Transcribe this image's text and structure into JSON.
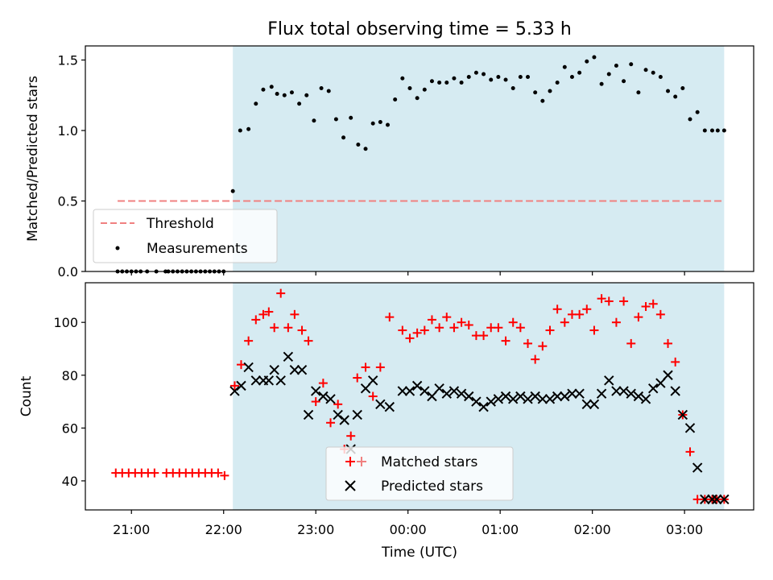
{
  "figure": {
    "title": "Flux total observing time = 5.33 h",
    "xlabel": "Time (UTC)",
    "xtick_labels": [
      "21:00",
      "22:00",
      "23:00",
      "00:00",
      "01:00",
      "02:00",
      "03:00"
    ],
    "colors": {
      "shade": "#add8e6",
      "threshold": "#f08080",
      "measurement": "#000000",
      "matched": "#ff0000",
      "predicted": "#000000"
    }
  },
  "chart_data": [
    {
      "type": "scatter",
      "ylabel": "Matched/Predicted stars",
      "x_unit": "hours after 21:00 UTC",
      "xlim": [
        -0.5,
        6.75
      ],
      "ylim": [
        0,
        1.6
      ],
      "yticks": [
        0.0,
        0.5,
        1.0,
        1.5
      ],
      "ytick_labels": [
        "0.0",
        "0.5",
        "1.0",
        "1.5"
      ],
      "shaded_span": [
        1.1,
        6.43
      ],
      "threshold": {
        "name": "Threshold",
        "y": 0.5,
        "x_range": [
          -0.15,
          6.43
        ]
      },
      "legend": {
        "location": "lower left",
        "entries": [
          "Threshold",
          "Measurements"
        ]
      },
      "series": [
        {
          "name": "Measurements",
          "x": [
            -0.15,
            -0.1,
            -0.05,
            0.0,
            0.05,
            0.1,
            0.17,
            0.27,
            0.37,
            0.4,
            0.45,
            0.5,
            0.55,
            0.6,
            0.65,
            0.7,
            0.75,
            0.8,
            0.85,
            0.9,
            0.95,
            1.0,
            1.1,
            1.18,
            1.27,
            1.35,
            1.43,
            1.52,
            1.58,
            1.66,
            1.74,
            1.82,
            1.9,
            1.98,
            2.06,
            2.14,
            2.22,
            2.3,
            2.38,
            2.46,
            2.54,
            2.62,
            2.7,
            2.78,
            2.86,
            2.94,
            3.02,
            3.1,
            3.18,
            3.26,
            3.34,
            3.42,
            3.5,
            3.58,
            3.66,
            3.74,
            3.82,
            3.9,
            3.98,
            4.06,
            4.14,
            4.22,
            4.3,
            4.38,
            4.46,
            4.54,
            4.62,
            4.7,
            4.78,
            4.86,
            4.94,
            5.02,
            5.1,
            5.18,
            5.26,
            5.34,
            5.42,
            5.5,
            5.58,
            5.66,
            5.74,
            5.82,
            5.9,
            5.98,
            6.06,
            6.14,
            6.22,
            6.3,
            6.36,
            6.43
          ],
          "y": [
            0,
            0,
            0,
            0,
            0,
            0,
            0,
            0,
            0,
            0,
            0,
            0,
            0,
            0,
            0,
            0,
            0,
            0,
            0,
            0,
            0,
            0,
            0.57,
            1.0,
            1.01,
            1.19,
            1.29,
            1.31,
            1.26,
            1.25,
            1.27,
            1.19,
            1.25,
            1.07,
            1.3,
            1.28,
            1.08,
            0.95,
            1.09,
            0.9,
            0.87,
            1.05,
            1.06,
            1.04,
            1.22,
            1.37,
            1.3,
            1.23,
            1.29,
            1.35,
            1.34,
            1.34,
            1.37,
            1.34,
            1.38,
            1.41,
            1.4,
            1.36,
            1.38,
            1.36,
            1.3,
            1.38,
            1.38,
            1.27,
            1.21,
            1.28,
            1.34,
            1.45,
            1.38,
            1.41,
            1.49,
            1.52,
            1.33,
            1.4,
            1.46,
            1.35,
            1.47,
            1.27,
            1.43,
            1.41,
            1.38,
            1.28,
            1.24,
            1.3,
            1.08,
            1.13,
            1.0,
            1.0,
            1.0,
            1.0
          ]
        }
      ]
    },
    {
      "type": "scatter",
      "ylabel": "Count",
      "x_unit": "hours after 21:00 UTC",
      "xlim": [
        -0.5,
        6.75
      ],
      "ylim": [
        29,
        115
      ],
      "yticks": [
        40,
        60,
        80,
        100
      ],
      "ytick_labels": [
        "40",
        "60",
        "80",
        "100"
      ],
      "shaded_span": [
        1.1,
        6.43
      ],
      "legend": {
        "location": "lower center",
        "entries": [
          "Matched stars",
          "Predicted stars"
        ]
      },
      "series": [
        {
          "name": "Matched stars",
          "x": [
            -0.17,
            -0.1,
            -0.03,
            0.04,
            0.11,
            0.18,
            0.25,
            0.38,
            0.45,
            0.52,
            0.59,
            0.66,
            0.73,
            0.8,
            0.87,
            0.94,
            1.01,
            1.12,
            1.19,
            1.27,
            1.35,
            1.43,
            1.49,
            1.55,
            1.62,
            1.7,
            1.77,
            1.85,
            1.92,
            2.0,
            2.08,
            2.16,
            2.24,
            2.31,
            2.38,
            2.45,
            2.54,
            2.62,
            2.7,
            2.8,
            2.94,
            3.02,
            3.1,
            3.18,
            3.26,
            3.34,
            3.42,
            3.5,
            3.58,
            3.66,
            3.74,
            3.82,
            3.9,
            3.98,
            4.06,
            4.14,
            4.22,
            4.3,
            4.38,
            4.46,
            4.54,
            4.62,
            4.7,
            4.78,
            4.86,
            4.94,
            5.02,
            5.1,
            5.18,
            5.26,
            5.34,
            5.42,
            5.5,
            5.58,
            5.66,
            5.74,
            5.82,
            5.9,
            5.98,
            6.06,
            6.14,
            6.22,
            6.3,
            6.35,
            6.43
          ],
          "y": [
            43,
            43,
            43,
            43,
            43,
            43,
            43,
            43,
            43,
            43,
            43,
            43,
            43,
            43,
            43,
            43,
            42,
            76,
            84,
            93,
            101,
            103,
            104,
            98,
            111,
            98,
            103,
            97,
            93,
            70,
            77,
            62,
            69,
            52,
            57,
            79,
            83,
            72,
            83,
            102,
            97,
            94,
            96,
            97,
            101,
            98,
            102,
            98,
            100,
            99,
            95,
            95,
            98,
            98,
            93,
            100,
            98,
            92,
            86,
            91,
            97,
            105,
            100,
            103,
            103,
            105,
            97,
            109,
            108,
            100,
            108,
            92,
            102,
            106,
            107,
            103,
            92,
            85,
            65,
            51,
            33,
            33,
            33,
            33,
            33
          ]
        },
        {
          "name": "Predicted stars",
          "x": [
            1.12,
            1.19,
            1.27,
            1.35,
            1.43,
            1.49,
            1.55,
            1.62,
            1.7,
            1.77,
            1.85,
            1.92,
            2.0,
            2.08,
            2.16,
            2.24,
            2.31,
            2.38,
            2.45,
            2.54,
            2.62,
            2.7,
            2.8,
            2.94,
            3.02,
            3.1,
            3.18,
            3.26,
            3.34,
            3.42,
            3.5,
            3.58,
            3.66,
            3.74,
            3.82,
            3.9,
            3.98,
            4.06,
            4.14,
            4.22,
            4.3,
            4.38,
            4.46,
            4.54,
            4.62,
            4.7,
            4.78,
            4.86,
            4.94,
            5.02,
            5.1,
            5.18,
            5.26,
            5.34,
            5.42,
            5.5,
            5.58,
            5.66,
            5.74,
            5.82,
            5.9,
            5.98,
            6.06,
            6.14,
            6.22,
            6.3,
            6.35,
            6.43
          ],
          "y": [
            74,
            76,
            83,
            78,
            78,
            78,
            82,
            78,
            87,
            82,
            82,
            65,
            74,
            72,
            71,
            65,
            63,
            52,
            65,
            75,
            78,
            69,
            68,
            74,
            74,
            76,
            74,
            72,
            75,
            73,
            74,
            73,
            72,
            70,
            68,
            70,
            71,
            72,
            71,
            72,
            71,
            72,
            71,
            71,
            72,
            72,
            73,
            73,
            69,
            69,
            73,
            78,
            74,
            74,
            73,
            72,
            71,
            75,
            77,
            80,
            74,
            65,
            60,
            45,
            33,
            33,
            33,
            33
          ]
        }
      ]
    }
  ]
}
